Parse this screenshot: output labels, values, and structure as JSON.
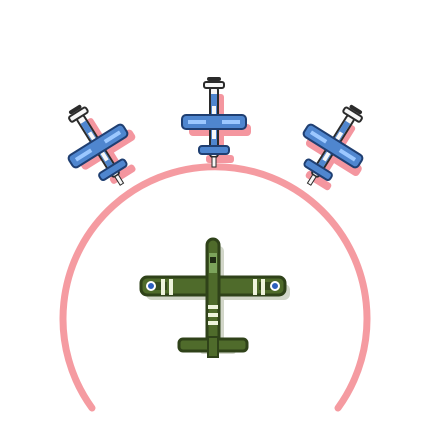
{
  "scene": {
    "background": "#ffffff",
    "arc_color": "#f59ba1",
    "escort_planes": [
      {
        "name": "escort-plane-left",
        "icon": "blue-fighter-plane-icon"
      },
      {
        "name": "escort-plane-center",
        "icon": "blue-fighter-plane-icon"
      },
      {
        "name": "escort-plane-right",
        "icon": "blue-fighter-plane-icon"
      }
    ],
    "player_plane": {
      "icon": "green-transport-plane-icon"
    },
    "colors": {
      "escort_body": "#4f86cf",
      "escort_dark": "#1f3f72",
      "escort_white": "#f7f7f7",
      "escort_shadow": "#f38b95",
      "player_body": "#4f6b2b",
      "player_dark": "#2f4219",
      "player_stripe": "#eef3dc",
      "player_shadow": "#7f8b68"
    }
  }
}
